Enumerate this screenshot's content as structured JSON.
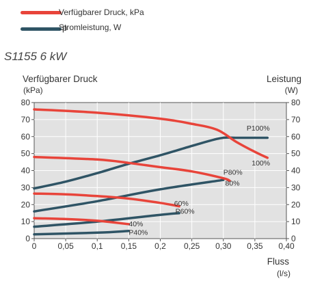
{
  "legend": {
    "pressure": {
      "label": "Verfügbarer Druck, kPa",
      "color": "#e8443a"
    },
    "power": {
      "label": "Stromleistung, W",
      "marker": "p",
      "color": "#2f5465"
    }
  },
  "model_title": "S1155 6 kW",
  "chart_data": {
    "type": "line",
    "title": "",
    "xlabel": "Fluss",
    "xunit": "(l/s)",
    "ylabel_left": "Verfügbarer Druck",
    "yunit_left": "(kPa)",
    "ylabel_right": "Leistung",
    "yunit_right": "(W)",
    "xlim": [
      0,
      0.4
    ],
    "ylim": [
      0,
      80
    ],
    "xticks": [
      "0",
      "0,05",
      "0,1",
      "0,15",
      "0,2",
      "0,25",
      "0,30",
      "0,35",
      "0,40"
    ],
    "xtick_values": [
      0,
      0.05,
      0.1,
      0.15,
      0.2,
      0.25,
      0.3,
      0.35,
      0.4
    ],
    "yticks": [
      "0",
      "10",
      "20",
      "30",
      "40",
      "50",
      "60",
      "70",
      "80"
    ],
    "ytick_values": [
      0,
      10,
      20,
      30,
      40,
      50,
      60,
      70,
      80
    ],
    "grid": true,
    "series": [
      {
        "name": "100%",
        "kind": "pressure",
        "points": [
          [
            0,
            76
          ],
          [
            0.1,
            74
          ],
          [
            0.2,
            70.5
          ],
          [
            0.25,
            67.5
          ],
          [
            0.29,
            64
          ],
          [
            0.32,
            57
          ],
          [
            0.35,
            51
          ],
          [
            0.37,
            47.5
          ]
        ]
      },
      {
        "name": "80%",
        "kind": "pressure",
        "points": [
          [
            0,
            48
          ],
          [
            0.1,
            46.5
          ],
          [
            0.15,
            44.5
          ],
          [
            0.2,
            42
          ],
          [
            0.25,
            39.5
          ],
          [
            0.3,
            35.5
          ],
          [
            0.31,
            34
          ]
        ]
      },
      {
        "name": "60%",
        "kind": "pressure",
        "points": [
          [
            0,
            26.5
          ],
          [
            0.05,
            26
          ],
          [
            0.1,
            25
          ],
          [
            0.15,
            23.5
          ],
          [
            0.2,
            21
          ],
          [
            0.23,
            19
          ]
        ]
      },
      {
        "name": "40%",
        "kind": "pressure",
        "points": [
          [
            0,
            12
          ],
          [
            0.05,
            11.5
          ],
          [
            0.1,
            10.5
          ],
          [
            0.15,
            8.5
          ]
        ]
      },
      {
        "name": "P100%",
        "kind": "power",
        "points": [
          [
            0,
            29.5
          ],
          [
            0.05,
            33.5
          ],
          [
            0.1,
            38.5
          ],
          [
            0.15,
            44
          ],
          [
            0.2,
            49
          ],
          [
            0.25,
            54.5
          ],
          [
            0.295,
            59
          ],
          [
            0.32,
            59.3
          ],
          [
            0.37,
            59.3
          ]
        ]
      },
      {
        "name": "P80%",
        "kind": "power",
        "points": [
          [
            0,
            16
          ],
          [
            0.1,
            22
          ],
          [
            0.2,
            29
          ],
          [
            0.3,
            34.5
          ]
        ]
      },
      {
        "name": "P60%",
        "kind": "power",
        "points": [
          [
            0,
            7
          ],
          [
            0.1,
            10
          ],
          [
            0.2,
            14
          ],
          [
            0.23,
            15
          ]
        ]
      },
      {
        "name": "P40%",
        "kind": "power",
        "points": [
          [
            0,
            2.5
          ],
          [
            0.1,
            3.5
          ],
          [
            0.15,
            4.5
          ]
        ]
      }
    ],
    "annotations": [
      {
        "text": "P100%",
        "x": 0.337,
        "y": 63.5,
        "anchor": "start"
      },
      {
        "text": "100%",
        "x": 0.345,
        "y": 43,
        "anchor": "start"
      },
      {
        "text": "P80%",
        "x": 0.3,
        "y": 37.5,
        "anchor": "start"
      },
      {
        "text": "80%",
        "x": 0.303,
        "y": 31.2,
        "anchor": "start"
      },
      {
        "text": "60%",
        "x": 0.222,
        "y": 19.2,
        "anchor": "start"
      },
      {
        "text": "P60%",
        "x": 0.224,
        "y": 14.7,
        "anchor": "start"
      },
      {
        "text": "40%",
        "x": 0.15,
        "y": 7.2,
        "anchor": "start"
      },
      {
        "text": "P40%",
        "x": 0.15,
        "y": 2.2,
        "anchor": "start"
      }
    ]
  }
}
